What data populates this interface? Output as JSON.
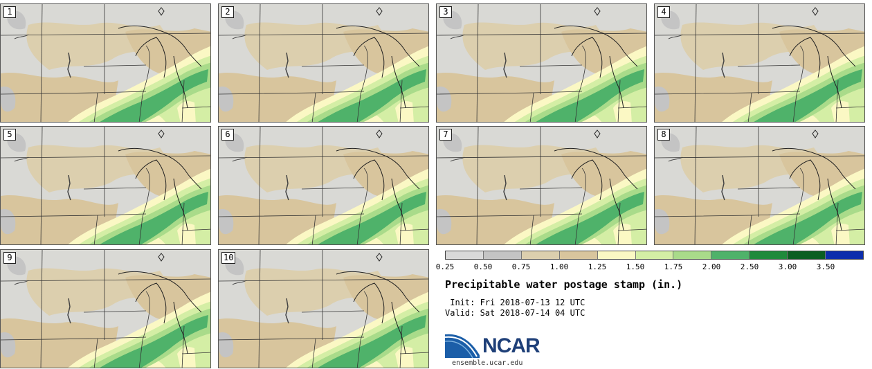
{
  "panels": [
    {
      "label": "1"
    },
    {
      "label": "2"
    },
    {
      "label": "3"
    },
    {
      "label": "4"
    },
    {
      "label": "5"
    },
    {
      "label": "6"
    },
    {
      "label": "7"
    },
    {
      "label": "8"
    },
    {
      "label": "9"
    },
    {
      "label": "10"
    }
  ],
  "legend": {
    "colors": [
      "#d9d9d9",
      "#c4c4c4",
      "#dccfae",
      "#d8c59d",
      "#fbf8c4",
      "#d4eea5",
      "#a9db8a",
      "#4fb26a",
      "#1f8a3b",
      "#0b5e22",
      "#0c2dac"
    ],
    "ticks": [
      "0.25",
      "0.50",
      "0.75",
      "1.00",
      "1.25",
      "1.50",
      "1.75",
      "2.00",
      "2.50",
      "3.00",
      "3.50"
    ]
  },
  "title": "Precipitable water postage stamp (in.)",
  "init": " Init: Fri 2018-07-13 12 UTC",
  "valid": "Valid: Sat 2018-07-14 04 UTC",
  "logo": {
    "brand": "NCAR",
    "url": "ensemble.ucar.edu"
  }
}
